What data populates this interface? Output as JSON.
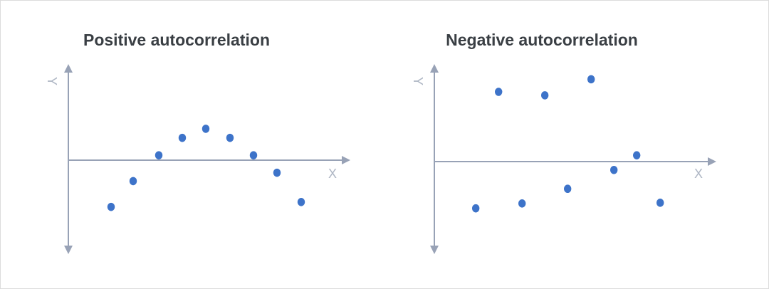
{
  "colors": {
    "axis": "#98a2b6",
    "point": "#3d73c9",
    "title": "#3a3f44",
    "axis_label": "#aeb6c4"
  },
  "chart_data": [
    {
      "type": "scatter",
      "title": "Positive autocorrelation",
      "xlabel": "X",
      "ylabel": "Y",
      "xlim": [
        -0.2,
        4.0
      ],
      "ylim": [
        -1.4,
        1.4
      ],
      "grid": false,
      "points": [
        {
          "x": 0.6,
          "y": -0.67
        },
        {
          "x": 0.91,
          "y": -0.3
        },
        {
          "x": 1.27,
          "y": 0.07
        },
        {
          "x": 1.6,
          "y": 0.32
        },
        {
          "x": 1.93,
          "y": 0.45
        },
        {
          "x": 2.27,
          "y": 0.32
        },
        {
          "x": 2.6,
          "y": 0.07
        },
        {
          "x": 2.93,
          "y": -0.18
        },
        {
          "x": 3.27,
          "y": -0.6
        }
      ]
    },
    {
      "type": "scatter",
      "title": "Negative autocorrelation",
      "xlabel": "X",
      "ylabel": "Y",
      "xlim": [
        -0.2,
        4.0
      ],
      "ylim": [
        -1.4,
        1.4
      ],
      "grid": false,
      "points": [
        {
          "x": 0.6,
          "y": -0.67
        },
        {
          "x": 0.93,
          "y": 1.0
        },
        {
          "x": 1.27,
          "y": -0.6
        },
        {
          "x": 1.6,
          "y": 0.95
        },
        {
          "x": 1.93,
          "y": -0.39
        },
        {
          "x": 2.27,
          "y": 1.18
        },
        {
          "x": 2.6,
          "y": -0.12
        },
        {
          "x": 2.93,
          "y": 0.09
        },
        {
          "x": 3.27,
          "y": -0.59
        }
      ]
    }
  ]
}
